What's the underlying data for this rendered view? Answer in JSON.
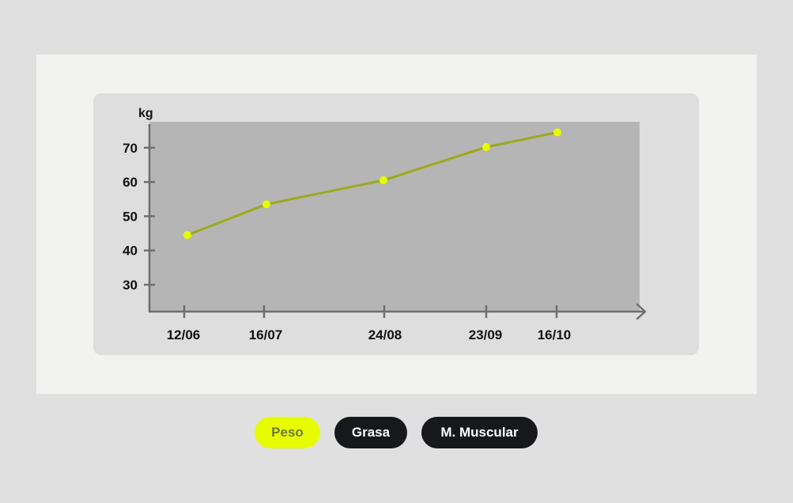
{
  "chart_data": {
    "type": "line",
    "ylabel": "kg",
    "categories": [
      "12/06",
      "16/07",
      "24/08",
      "23/09",
      "16/10"
    ],
    "series": [
      {
        "values": [
          44.5,
          53.5,
          60.5,
          70.2,
          74.5
        ]
      }
    ],
    "yticks": [
      30,
      40,
      50,
      60,
      70
    ],
    "ylim": [
      22,
      78
    ],
    "grid": false,
    "line_color": "#9aaa1a",
    "point_color": "#e8fc00",
    "plot_bg": "#b5b5b5"
  },
  "toggles": {
    "peso": "Peso",
    "grasa": "Grasa",
    "muscular": "M. Muscular"
  },
  "colors": {
    "active_pill": "#e8fc00",
    "inactive_pill": "#17181c"
  }
}
